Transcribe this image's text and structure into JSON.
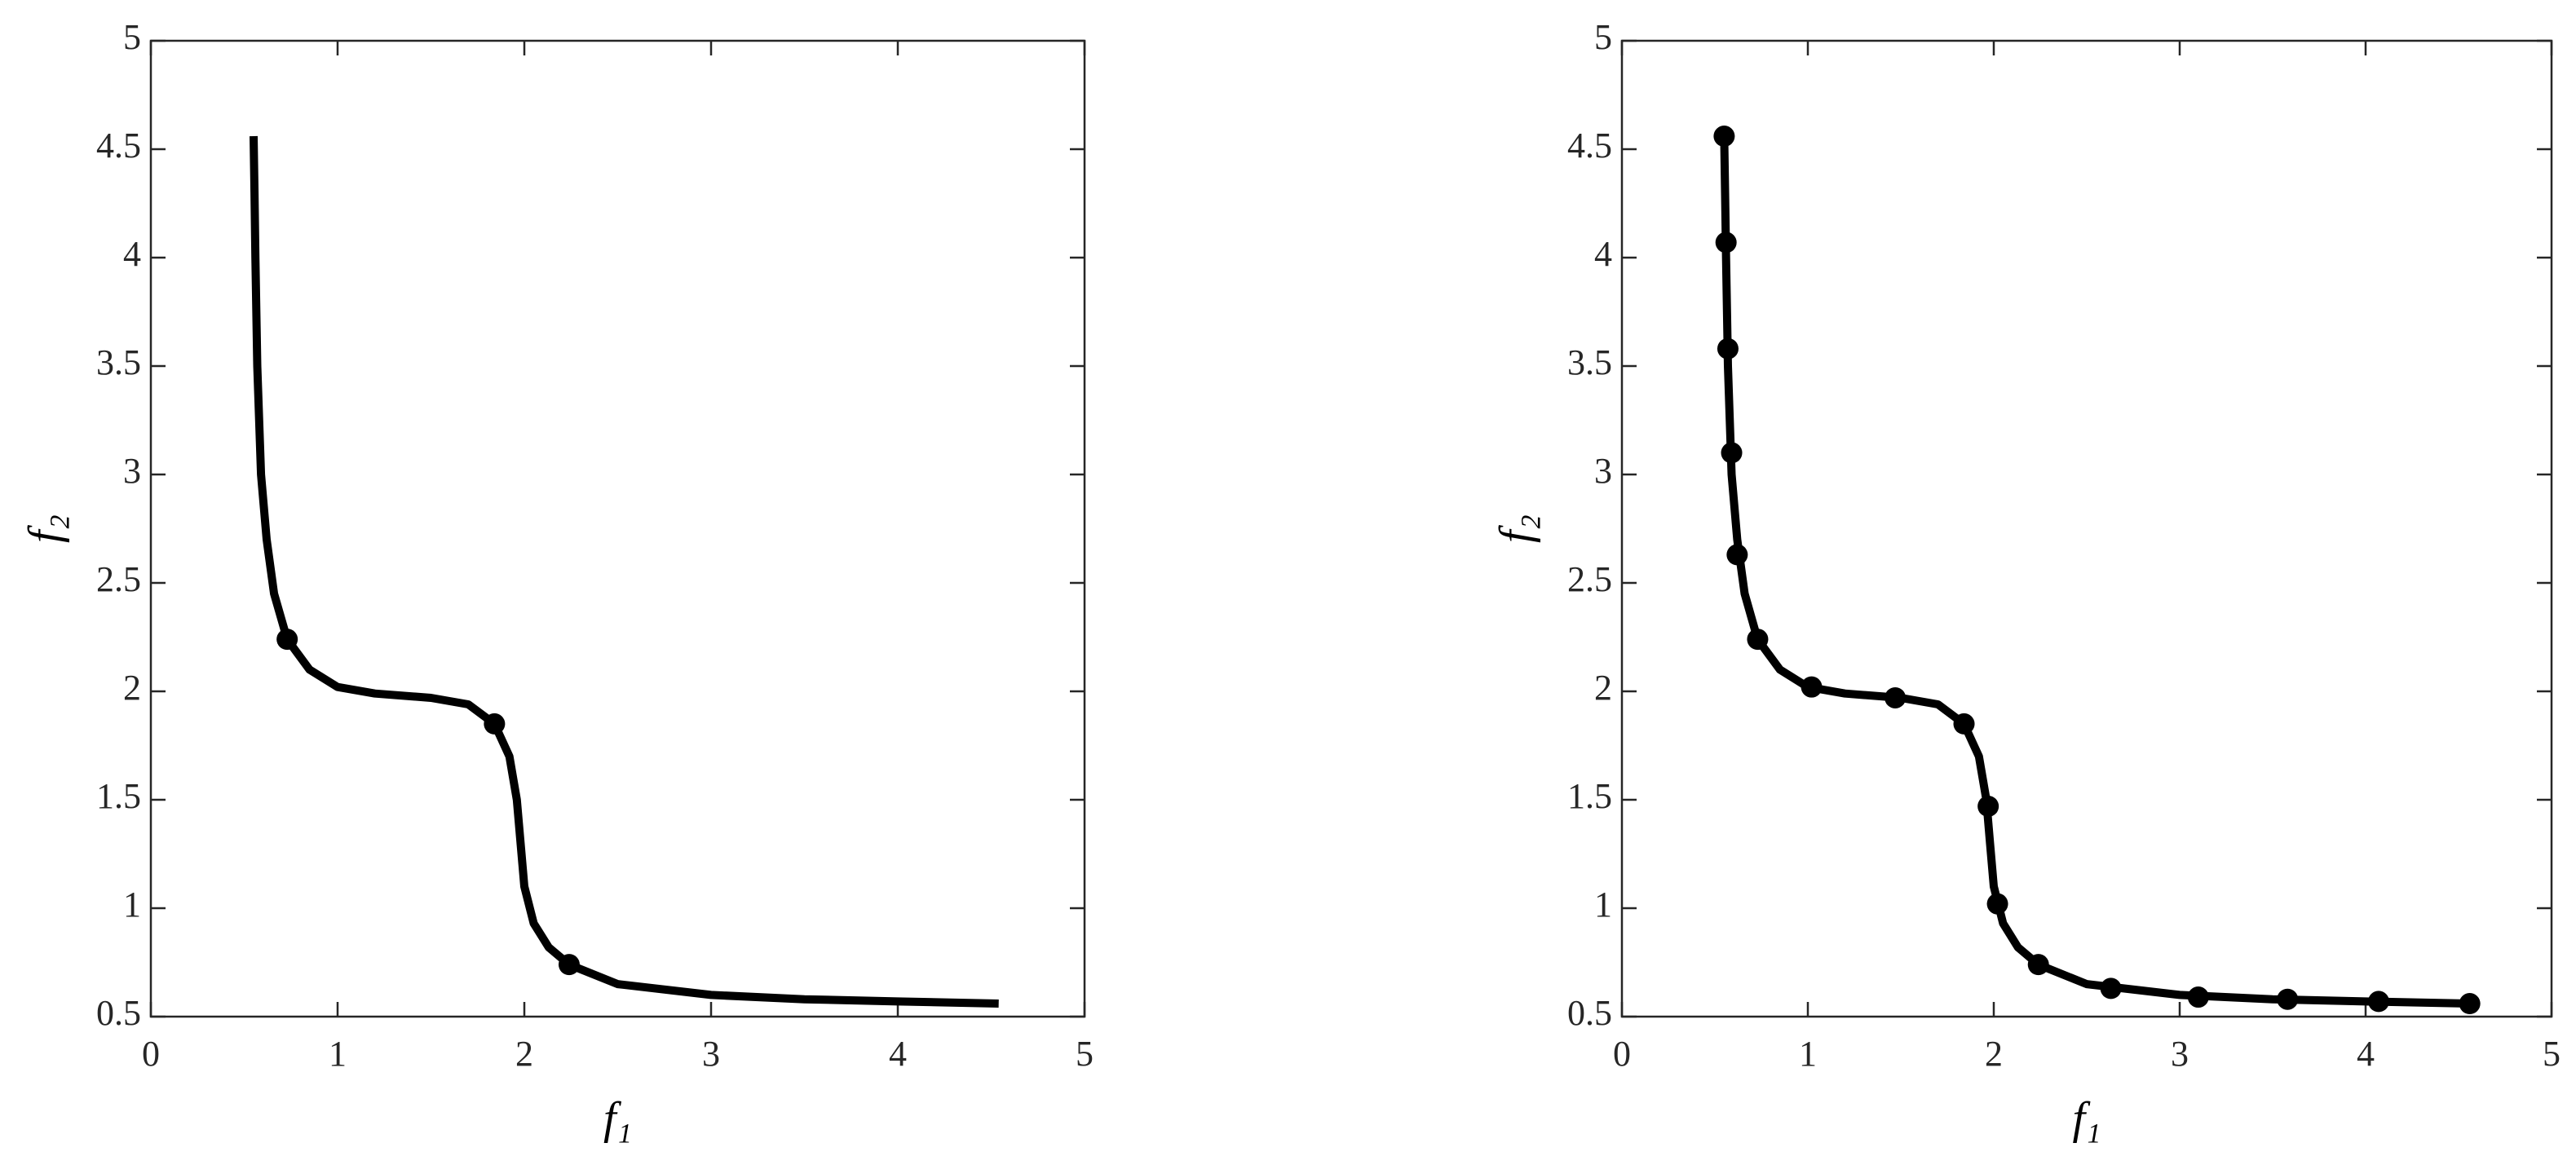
{
  "chart_data": [
    {
      "type": "line",
      "xlabel": "f₁",
      "ylabel": "f₂",
      "xlim": [
        0,
        5
      ],
      "ylim": [
        0.5,
        5
      ],
      "xticks": [
        0,
        1,
        2,
        3,
        4,
        5
      ],
      "yticks": [
        0.5,
        1,
        1.5,
        2,
        2.5,
        3,
        3.5,
        4,
        4.5,
        5
      ],
      "series": [
        {
          "color": "#000000",
          "style": "line",
          "x": [
            0.55,
            0.555,
            0.56,
            0.57,
            0.59,
            0.62,
            0.66,
            0.73,
            0.85,
            1.0,
            1.2,
            1.5,
            1.7,
            1.84,
            1.92,
            1.96,
            1.98,
            2.0,
            2.05,
            2.13,
            2.24,
            2.5,
            3.0,
            3.5,
            4.0,
            4.54
          ],
          "values": [
            4.56,
            4.3,
            4.0,
            3.5,
            3.0,
            2.7,
            2.45,
            2.24,
            2.1,
            2.02,
            1.99,
            1.97,
            1.94,
            1.85,
            1.7,
            1.5,
            1.3,
            1.1,
            0.93,
            0.82,
            0.74,
            0.65,
            0.6,
            0.58,
            0.57,
            0.56
          ]
        },
        {
          "color": "#000000",
          "style": "markers",
          "x": [
            0.73,
            1.84,
            2.24
          ],
          "values": [
            2.24,
            1.85,
            0.74
          ]
        }
      ]
    },
    {
      "type": "line",
      "xlabel": "f₁",
      "ylabel": "f₂",
      "xlim": [
        0,
        5
      ],
      "ylim": [
        0.5,
        5
      ],
      "xticks": [
        0,
        1,
        2,
        3,
        4,
        5
      ],
      "yticks": [
        0.5,
        1,
        1.5,
        2,
        2.5,
        3,
        3.5,
        4,
        4.5,
        5
      ],
      "series": [
        {
          "color": "#000000",
          "style": "line",
          "x": [
            0.55,
            0.555,
            0.56,
            0.57,
            0.59,
            0.62,
            0.66,
            0.73,
            0.85,
            1.0,
            1.2,
            1.5,
            1.7,
            1.84,
            1.92,
            1.96,
            1.98,
            2.0,
            2.05,
            2.13,
            2.24,
            2.5,
            3.0,
            3.5,
            4.0,
            4.56
          ],
          "values": [
            4.56,
            4.3,
            4.0,
            3.5,
            3.0,
            2.7,
            2.45,
            2.24,
            2.1,
            2.02,
            1.99,
            1.97,
            1.94,
            1.85,
            1.7,
            1.5,
            1.3,
            1.1,
            0.93,
            0.82,
            0.74,
            0.65,
            0.6,
            0.58,
            0.57,
            0.56
          ]
        },
        {
          "color": "#000000",
          "style": "markers",
          "x": [
            0.55,
            0.56,
            0.57,
            0.59,
            0.62,
            0.73,
            1.02,
            1.47,
            1.84,
            1.97,
            2.02,
            2.24,
            2.63,
            3.1,
            3.58,
            4.07,
            4.56
          ],
          "values": [
            4.56,
            4.07,
            3.58,
            3.1,
            2.63,
            2.24,
            2.02,
            1.97,
            1.85,
            1.47,
            1.02,
            0.74,
            0.63,
            0.59,
            0.58,
            0.57,
            0.56
          ]
        }
      ]
    }
  ]
}
